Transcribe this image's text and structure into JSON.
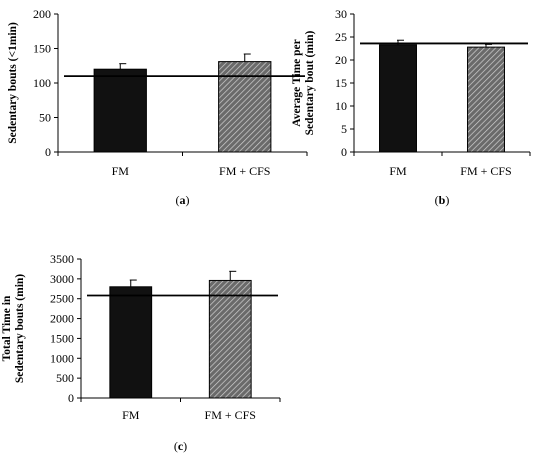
{
  "chart_data": [
    {
      "type": "bar",
      "panel_label_prefix": "(",
      "panel_letter": "a",
      "panel_label_suffix": ")",
      "title": "",
      "xlabel": "",
      "ylabel": "Sedentary bouts (<1min)",
      "ylim": [
        0,
        200
      ],
      "yticks": [
        0,
        50,
        100,
        150,
        200
      ],
      "categories": [
        "FM",
        "FM + CFS"
      ],
      "values": [
        120,
        131
      ],
      "errors": [
        8,
        11
      ],
      "reference_line": 110,
      "bar_styles": [
        "solid",
        "hatched"
      ],
      "colors": {
        "bar_solid": "#111111",
        "hatch_bg": "#6a6a6a",
        "hatch_line": "#d0d0d0"
      },
      "grid": false,
      "legend": "none"
    },
    {
      "type": "bar",
      "panel_label_prefix": "(",
      "panel_letter": "b",
      "panel_label_suffix": ")",
      "title": "",
      "xlabel": "",
      "ylabel": "Average Time per Sedentary bout (min)",
      "ylim": [
        0,
        30
      ],
      "yticks": [
        0,
        5,
        10,
        15,
        20,
        25,
        30
      ],
      "categories": [
        "FM",
        "FM + CFS"
      ],
      "values": [
        23.3,
        22.8
      ],
      "errors": [
        1.0,
        0.6
      ],
      "reference_line": 23.6,
      "bar_styles": [
        "solid",
        "hatched"
      ],
      "colors": {
        "bar_solid": "#111111",
        "hatch_bg": "#6a6a6a",
        "hatch_line": "#d0d0d0"
      },
      "grid": false,
      "legend": "none"
    },
    {
      "type": "bar",
      "panel_label_prefix": "(",
      "panel_letter": "c",
      "panel_label_suffix": ")",
      "title": "",
      "xlabel": "",
      "ylabel": "Total Time in Sedentary bouts (min)",
      "ylim": [
        0,
        3500
      ],
      "yticks": [
        0,
        500,
        1000,
        1500,
        2000,
        2500,
        3000,
        3500
      ],
      "categories": [
        "FM",
        "FM + CFS"
      ],
      "values": [
        2800,
        2960
      ],
      "errors": [
        170,
        230
      ],
      "reference_line": 2580,
      "bar_styles": [
        "solid",
        "hatched"
      ],
      "colors": {
        "bar_solid": "#111111",
        "hatch_bg": "#6a6a6a",
        "hatch_line": "#d0d0d0"
      },
      "grid": false,
      "legend": "none"
    }
  ]
}
